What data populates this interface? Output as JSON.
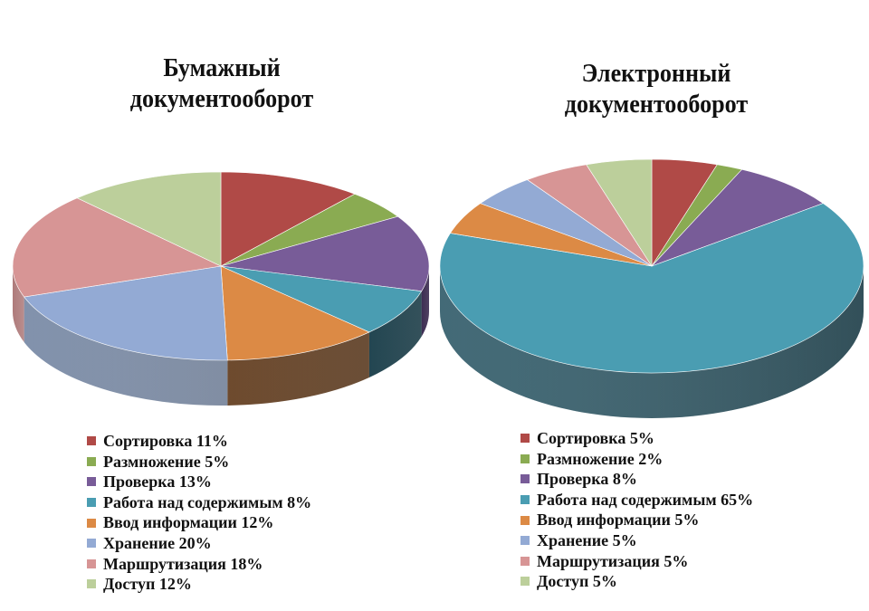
{
  "chart_data": [
    {
      "type": "pie",
      "title": "Бумажный документооборот",
      "title_lines": [
        "Бумажный",
        "документооборот"
      ],
      "categories": [
        "Сортировка",
        "Размножение",
        "Проверка",
        "Работа над содержимым",
        "Ввод информации",
        "Хранение",
        "Маршрутизация",
        "Доступ"
      ],
      "values": [
        11,
        5,
        13,
        8,
        12,
        20,
        18,
        12
      ],
      "unit": "%",
      "legend_labels": [
        "Сортировка 11%",
        "Размножение 5%",
        "Проверка 13%",
        "Работа над содержимым 8%",
        "Ввод информации 12%",
        "Хранение 20%",
        "Маршрутизация 18%",
        "Доступ 12%"
      ],
      "legend_position": "bottom",
      "style": "3d"
    },
    {
      "type": "pie",
      "title": "Электронный документооборот",
      "title_lines": [
        "Электронный",
        "документооборот"
      ],
      "categories": [
        "Сортировка",
        "Размножение",
        "Проверка",
        "Работа над содержимым",
        "Ввод информации",
        "Хранение",
        "Маршрутизация",
        "Доступ"
      ],
      "values": [
        5,
        2,
        8,
        65,
        5,
        5,
        5,
        5
      ],
      "unit": "%",
      "legend_labels": [
        "Сортировка 5%",
        "Размножение 2%",
        "Проверка 8%",
        "Работа над содержимым 65%",
        "Ввод информации 5%",
        "Хранение 5%",
        "Маршрутизация 5%",
        "Доступ  5%"
      ],
      "legend_position": "bottom",
      "style": "3d"
    }
  ],
  "colors": [
    "#b04a47",
    "#8aab52",
    "#785c98",
    "#4a9db2",
    "#dc8a45",
    "#93aad4",
    "#d79595",
    "#bccf9b"
  ],
  "side_colors": [
    "#7a302e",
    "#5d7a34",
    "#4f3a6c",
    "#22505f",
    "#6a3e1a",
    "#6c7f9e",
    "#a06363",
    "#8c9d70"
  ]
}
